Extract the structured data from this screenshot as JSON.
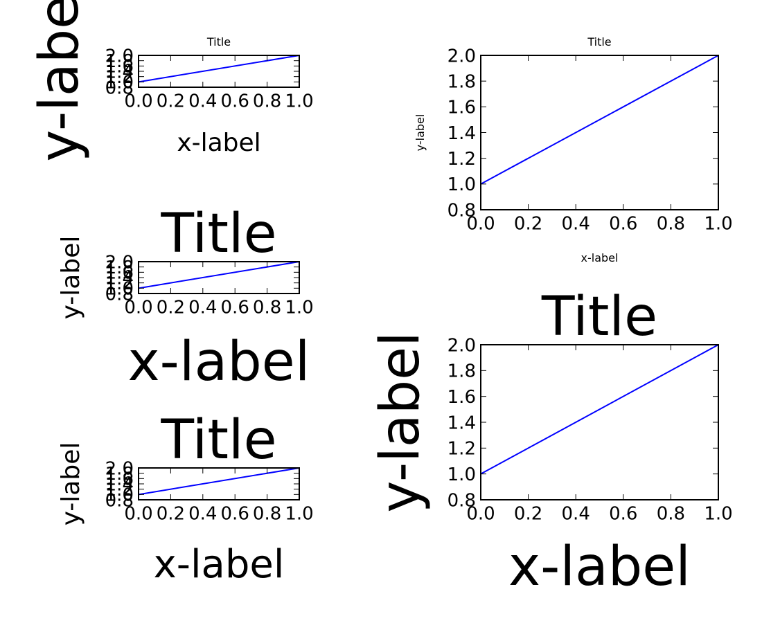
{
  "chart_data": [
    {
      "type": "line",
      "title": "Title",
      "xlabel": "x-label",
      "ylabel": "y-label",
      "x": [
        0.0,
        1.0
      ],
      "series": [
        {
          "values": [
            1.0,
            2.0
          ],
          "color": "#0000ff"
        }
      ],
      "xlim": [
        0.0,
        1.0
      ],
      "ylim": [
        0.8,
        2.0
      ],
      "xticks": [
        "0.0",
        "0.2",
        "0.4",
        "0.6",
        "0.8",
        "1.0"
      ],
      "yticks": [
        "0.8",
        "1.0",
        "1.2",
        "1.4",
        "1.6",
        "1.8",
        "2.0"
      ],
      "grid": false
    },
    {
      "type": "line",
      "title": "Title",
      "xlabel": "x-label",
      "ylabel": "y-label",
      "x": [
        0.0,
        1.0
      ],
      "series": [
        {
          "values": [
            1.0,
            2.0
          ],
          "color": "#0000ff"
        }
      ],
      "xlim": [
        0.0,
        1.0
      ],
      "ylim": [
        0.8,
        2.0
      ],
      "xticks": [
        "0.0",
        "0.2",
        "0.4",
        "0.6",
        "0.8",
        "1.0"
      ],
      "yticks": [
        "0.8",
        "1.0",
        "1.2",
        "1.4",
        "1.6",
        "1.8",
        "2.0"
      ],
      "grid": false
    },
    {
      "type": "line",
      "title": "Title",
      "xlabel": "x-label",
      "ylabel": "y-label",
      "x": [
        0.0,
        1.0
      ],
      "series": [
        {
          "values": [
            1.0,
            2.0
          ],
          "color": "#0000ff"
        }
      ],
      "xlim": [
        0.0,
        1.0
      ],
      "ylim": [
        0.8,
        2.0
      ],
      "xticks": [
        "0.0",
        "0.2",
        "0.4",
        "0.6",
        "0.8",
        "1.0"
      ],
      "yticks": [
        "0.8",
        "1.0",
        "1.2",
        "1.4",
        "1.6",
        "1.8",
        "2.0"
      ],
      "grid": false
    },
    {
      "type": "line",
      "title": "Title",
      "xlabel": "x-label",
      "ylabel": "y-label",
      "x": [
        0.0,
        1.0
      ],
      "series": [
        {
          "values": [
            1.0,
            2.0
          ],
          "color": "#0000ff"
        }
      ],
      "xlim": [
        0.0,
        1.0
      ],
      "ylim": [
        0.8,
        2.0
      ],
      "xticks": [
        "0.0",
        "0.2",
        "0.4",
        "0.6",
        "0.8",
        "1.0"
      ],
      "yticks": [
        "0.8",
        "1.0",
        "1.2",
        "1.4",
        "1.6",
        "1.8",
        "2.0"
      ],
      "grid": false
    },
    {
      "type": "line",
      "title": "Title",
      "xlabel": "x-label",
      "ylabel": "y-label",
      "x": [
        0.0,
        1.0
      ],
      "series": [
        {
          "values": [
            1.0,
            2.0
          ],
          "color": "#0000ff"
        }
      ],
      "xlim": [
        0.0,
        1.0
      ],
      "ylim": [
        0.8,
        2.0
      ],
      "xticks": [
        "0.0",
        "0.2",
        "0.4",
        "0.6",
        "0.8",
        "1.0"
      ],
      "yticks": [
        "0.8",
        "1.0",
        "1.2",
        "1.4",
        "1.6",
        "1.8",
        "2.0"
      ],
      "grid": false
    }
  ]
}
